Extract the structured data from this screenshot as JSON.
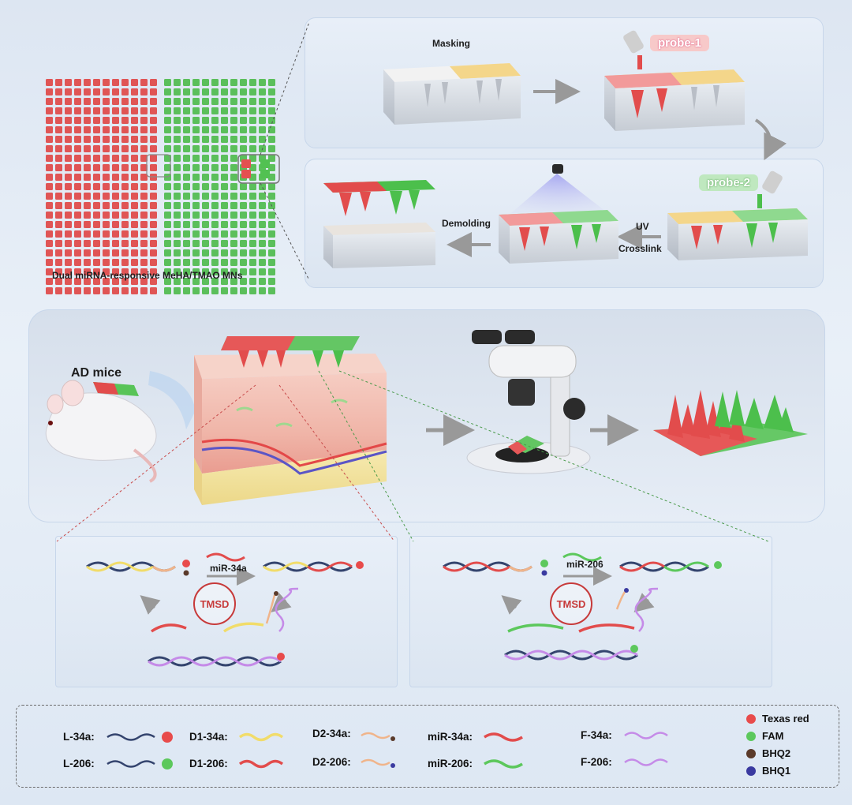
{
  "grid_caption": "Dual miRNA-responsive MeHA/TMAO MNs",
  "fab": {
    "masking": "Masking",
    "probe1": "probe-1",
    "probe2": "probe-2",
    "uv": "UV",
    "crosslink": "Crosslink",
    "demolding": "Demolding"
  },
  "middle": {
    "ad_mice": "AD mice"
  },
  "mechanism": {
    "left": {
      "trigger": "miR-34a",
      "tmsd": "TMSD"
    },
    "right": {
      "trigger": "miR-206",
      "tmsd": "TMSD"
    }
  },
  "legend": {
    "strands": [
      {
        "label": "L-34a:"
      },
      {
        "label": "L-206:"
      },
      {
        "label": "D1-34a:"
      },
      {
        "label": "D1-206:"
      },
      {
        "label": "D2-34a:"
      },
      {
        "label": "D2-206:"
      },
      {
        "label": "miR-34a:"
      },
      {
        "label": "miR-206:"
      },
      {
        "label": "F-34a:"
      },
      {
        "label": "F-206:"
      }
    ],
    "dots": [
      {
        "label": "Texas red",
        "color": "#e84b4b"
      },
      {
        "label": "FAM",
        "color": "#5cc85c"
      },
      {
        "label": "BHQ2",
        "color": "#5a3a2a"
      },
      {
        "label": "BHQ1",
        "color": "#3a3aa0"
      }
    ]
  },
  "colors": {
    "red": "#e05555",
    "green": "#5bbf5b",
    "yellow": "#f1dc6a",
    "navy": "#34446e",
    "purple": "#c58be8",
    "orange": "#f0b48a"
  }
}
